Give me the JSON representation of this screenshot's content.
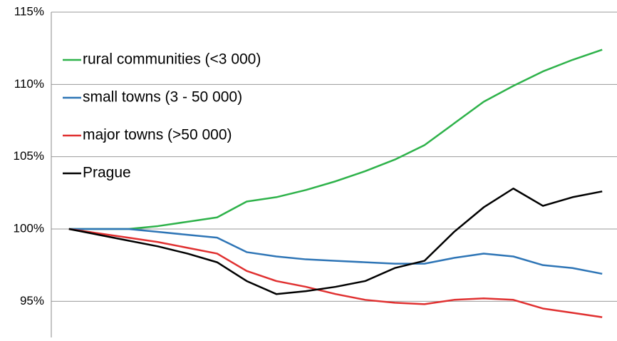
{
  "chart_data": {
    "type": "line",
    "categories": [
      null,
      null,
      null,
      null,
      null,
      null,
      null,
      null,
      null,
      null,
      null,
      null,
      null,
      null,
      null,
      null,
      null,
      null,
      null
    ],
    "series": [
      {
        "name": "rural communities (<3 000)",
        "color": "#2eb24a",
        "values": [
          100,
          100.0,
          100.0,
          100.2,
          100.5,
          100.8,
          101.9,
          102.2,
          102.7,
          103.3,
          104.0,
          104.8,
          105.8,
          107.3,
          108.8,
          109.9,
          110.9,
          111.7,
          112.4
        ]
      },
      {
        "name": "small towns (3 - 50 000)",
        "color": "#2e75b6",
        "values": [
          100,
          100,
          100,
          99.8,
          99.6,
          99.4,
          98.4,
          98.1,
          97.9,
          97.8,
          97.7,
          97.6,
          97.6,
          98.0,
          98.3,
          98.1,
          97.5,
          97.3,
          96.9
        ]
      },
      {
        "name": "major towns (>50 000)",
        "color": "#e03030",
        "values": [
          100,
          99.7,
          99.4,
          99.1,
          98.7,
          98.3,
          97.1,
          96.4,
          96.0,
          95.5,
          95.1,
          94.9,
          94.8,
          95.1,
          95.2,
          95.1,
          94.5,
          94.2,
          93.9
        ]
      },
      {
        "name": "Prague",
        "color": "#000000",
        "values": [
          100,
          99.6,
          99.2,
          98.8,
          98.3,
          97.7,
          96.4,
          95.5,
          95.7,
          96.0,
          96.4,
          97.3,
          97.8,
          99.8,
          101.5,
          102.8,
          101.6,
          102.2,
          102.6
        ]
      }
    ],
    "ylim": [
      92.5,
      115
    ],
    "yticks": [
      {
        "value": 95,
        "label": "95%"
      },
      {
        "value": 100,
        "label": "100%"
      },
      {
        "value": 105,
        "label": "105%"
      },
      {
        "value": 110,
        "label": "110%"
      },
      {
        "value": 115,
        "label": "115%"
      }
    ],
    "grid": true,
    "legend": "top-left"
  }
}
